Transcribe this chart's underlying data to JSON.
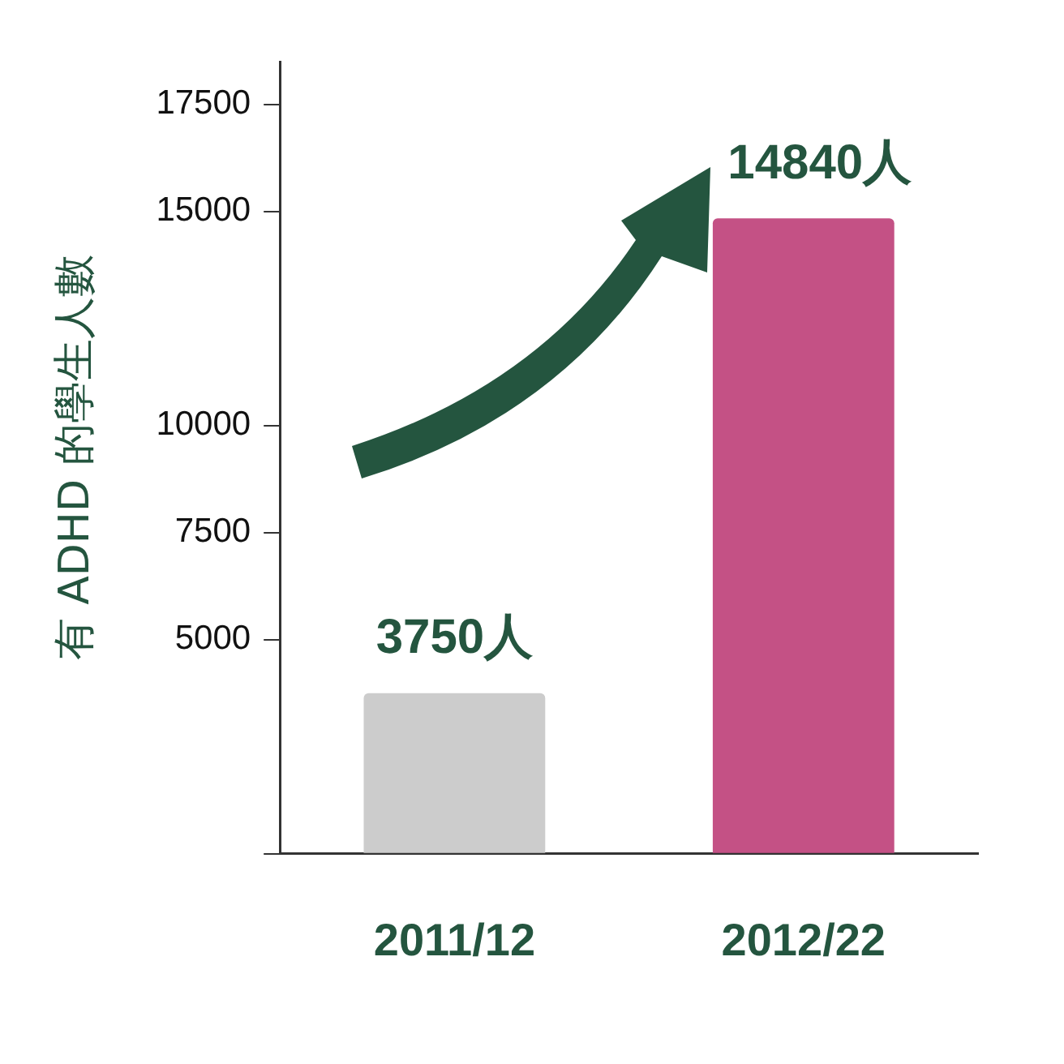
{
  "chart_data": {
    "type": "bar",
    "ylabel": "有 ADHD 的學生人數",
    "categories": [
      "2011/12",
      "2012/22"
    ],
    "values": [
      3750,
      14840
    ],
    "colors": [
      "#cccccc",
      "#c45185"
    ],
    "value_labels": [
      "3750人",
      "14840人"
    ],
    "ylim": [
      0,
      18500
    ],
    "yticks": [
      {
        "value": 0,
        "label": null
      },
      5000,
      7500,
      10000,
      15000,
      17500
    ],
    "grid": false,
    "legend": false
  }
}
